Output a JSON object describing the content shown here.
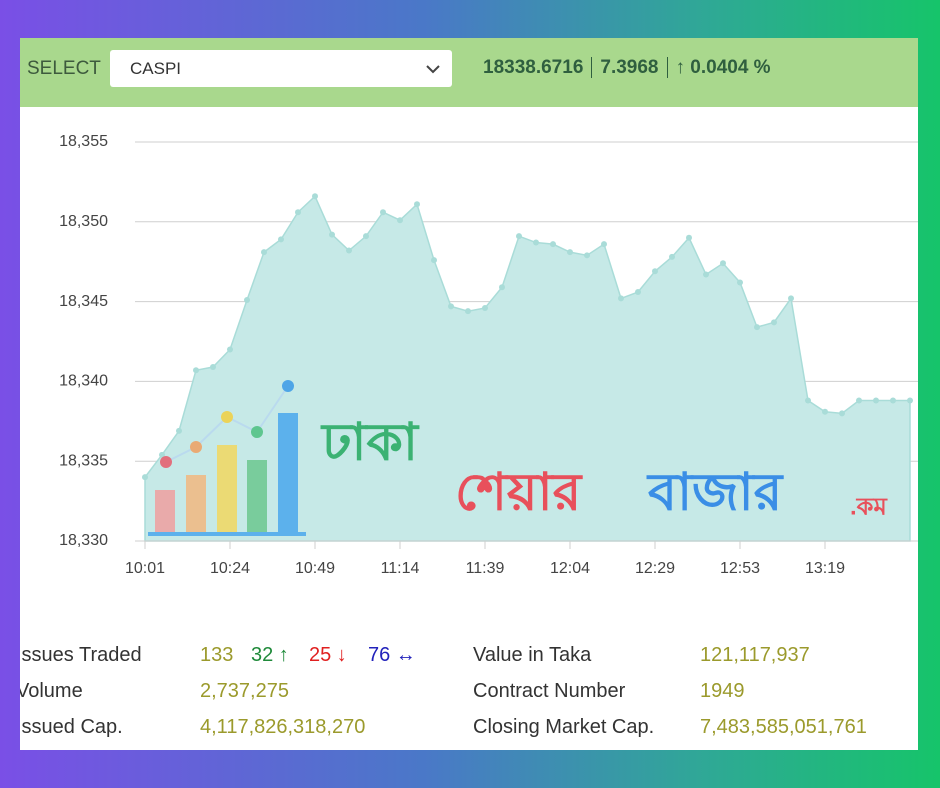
{
  "header": {
    "select_label": "SELECT",
    "dropdown": "CASPI",
    "index_value": "18338.6716",
    "change": "7.3968",
    "change_pct": "↑ 0.0404 %"
  },
  "chart_data": {
    "type": "area",
    "color": "#c6e9e7",
    "line_color": "#a9dcd8",
    "x": [
      0,
      1,
      2,
      3,
      4,
      5,
      6,
      7,
      8,
      9,
      10,
      11,
      12,
      13,
      14,
      15,
      16,
      17,
      18,
      19,
      20,
      21,
      22,
      23,
      24,
      25,
      26,
      27,
      28,
      29,
      30,
      31,
      32,
      33,
      34,
      35,
      36,
      37,
      38,
      39,
      40,
      41,
      42,
      43,
      44,
      45
    ],
    "series": [
      {
        "values": [
          18334.0,
          18335.4,
          18336.9,
          18340.7,
          18340.9,
          18342.0,
          18345.1,
          18348.1,
          18348.9,
          18350.6,
          18351.6,
          18349.2,
          18348.2,
          18349.1,
          18350.6,
          18350.1,
          18351.1,
          18347.6,
          18344.7,
          18344.4,
          18344.6,
          18345.9,
          18349.1,
          18348.7,
          18348.6,
          18348.1,
          18347.9,
          18348.6,
          18345.2,
          18345.6,
          18346.9,
          18347.8,
          18349.0,
          18346.7,
          18347.4,
          18346.2,
          18343.4,
          18343.7,
          18345.2,
          18338.8,
          18338.1,
          18338.0,
          18338.8,
          18338.8,
          18338.8,
          18338.8
        ]
      }
    ],
    "xlim": [
      0,
      45
    ],
    "xticks": [
      {
        "value": 0,
        "label": "10:01"
      },
      {
        "value": 5,
        "label": "10:24"
      },
      {
        "value": 10,
        "label": "10:49"
      },
      {
        "value": 15,
        "label": "11:14"
      },
      {
        "value": 20,
        "label": "11:39"
      },
      {
        "value": 25,
        "label": "12:04"
      },
      {
        "value": 30,
        "label": "12:29"
      },
      {
        "value": 35,
        "label": "12:53"
      },
      {
        "value": 40,
        "label": "13:19"
      }
    ],
    "ylim": [
      18330,
      18355
    ],
    "yticks": [
      {
        "value": 18330,
        "label": "18,330"
      },
      {
        "value": 18335,
        "label": "18,335"
      },
      {
        "value": 18340,
        "label": "18,340"
      },
      {
        "value": 18345,
        "label": "18,345"
      },
      {
        "value": 18350,
        "label": "18,350"
      },
      {
        "value": 18355,
        "label": "18,355"
      }
    ],
    "grid": true
  },
  "watermark": {
    "word1": "ঢাকা",
    "word2": "শেয়ার",
    "word3": "বাজার",
    "suffix": ".কম"
  },
  "stats": {
    "left": [
      {
        "label": "Issues Traded",
        "value": "133",
        "up": "32 ↑",
        "down": "25 ↓",
        "unchanged": "76 ↔"
      },
      {
        "label": "Volume",
        "value": "2,737,275"
      },
      {
        "label": "Issued Cap.",
        "value": "4,117,826,318,270"
      }
    ],
    "right": [
      {
        "label": "Value in Taka",
        "value": "121,117,937"
      },
      {
        "label": "Contract Number",
        "value": "1949"
      },
      {
        "label": "Closing Market Cap.",
        "value": "7,483,585,051,761"
      }
    ]
  }
}
